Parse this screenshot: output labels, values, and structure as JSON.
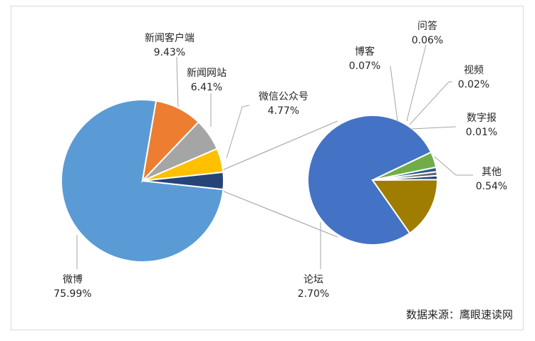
{
  "chart_data": {
    "type": "pie",
    "subtype": "pie-of-pie",
    "main_pie": {
      "slices": [
        {
          "label": "微博",
          "value": 75.99,
          "display": "75.99%",
          "color": "#5b9bd5"
        },
        {
          "label": "新闻客户端",
          "value": 9.43,
          "display": "9.43%",
          "color": "#ed7d31"
        },
        {
          "label": "新闻网站",
          "value": 6.41,
          "display": "6.41%",
          "color": "#a5a5a5"
        },
        {
          "label": "微信公众号",
          "value": 4.77,
          "display": "4.77%",
          "color": "#ffc000"
        },
        {
          "label": "其他",
          "value": 3.4,
          "display": "",
          "color": "#264478",
          "exploded_to_secondary": true
        }
      ]
    },
    "secondary_pie": {
      "slices": [
        {
          "label": "论坛",
          "value": 2.7,
          "display": "2.70%",
          "color": "#4472c4"
        },
        {
          "label": "其他",
          "value": 0.54,
          "display": "0.54%",
          "color": "#9e7d00"
        },
        {
          "label": "数字报",
          "value": 0.01,
          "display": "0.01%",
          "color": "#264478"
        },
        {
          "label": "视频",
          "value": 0.02,
          "display": "0.02%",
          "color": "#636363"
        },
        {
          "label": "问答",
          "value": 0.06,
          "display": "0.06%",
          "color": "#255e91"
        },
        {
          "label": "博客",
          "value": 0.07,
          "display": "0.07%",
          "color": "#70ad47"
        }
      ]
    },
    "legend": "none",
    "source": "数据来源：鹰眼速读网"
  }
}
